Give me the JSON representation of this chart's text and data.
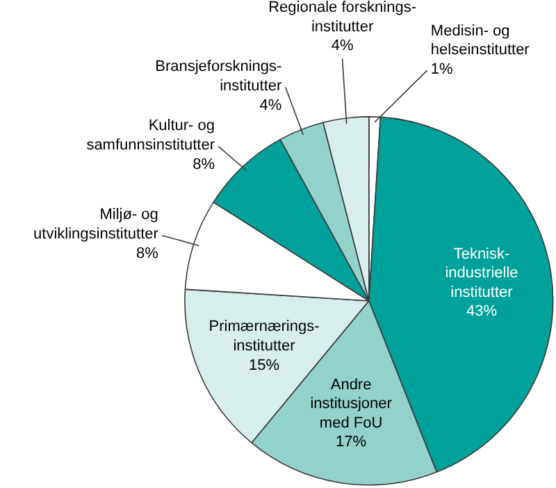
{
  "chart_data": {
    "type": "pie",
    "categories": [
      "Medisin- og\nhelseinstitutter",
      "Teknisk-\nindustrielle\ninstitutter",
      "Andre\ninstitusjoner\nmed FoU",
      "Primærnærings-\ninstitutter",
      "Miljø- og\nutviklingsinstitutter",
      "Kultur- og\nsamfunnsinstitutter",
      "Bransjeforsknings-\ninstitutter",
      "Regionale forsknings-\ninstitutter"
    ],
    "values": [
      1,
      43,
      17,
      15,
      8,
      8,
      4,
      4
    ],
    "colors": [
      "#ffffff",
      "#00a19a",
      "#93d1cb",
      "#d7eeec",
      "#ffffff",
      "#00a19a",
      "#93d1cb",
      "#d7eeec"
    ],
    "value_labels": [
      "1%",
      "43%",
      "17%",
      "15%",
      "8%",
      "8%",
      "4%",
      "4%"
    ]
  }
}
